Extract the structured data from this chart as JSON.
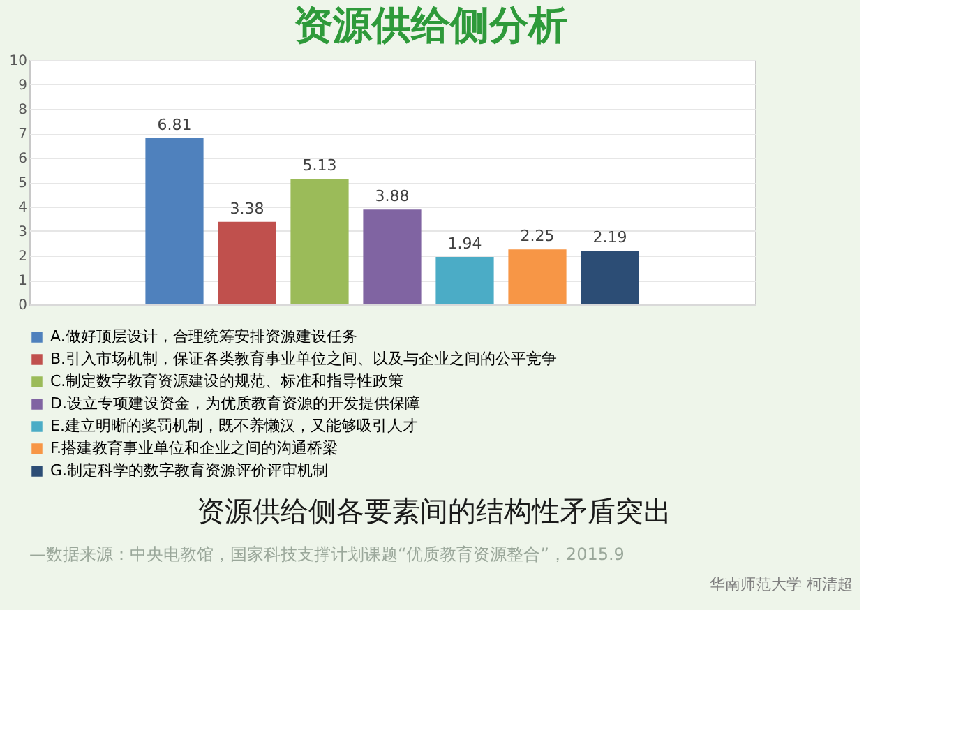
{
  "chart_data": {
    "type": "bar",
    "title": "资源供给侧分析",
    "subtitle": "资源供给侧各要素间的结构性矛盾突出",
    "categories": [
      null
    ],
    "series": [
      {
        "name": "A.做好顶层设计，合理统筹安排资源建设任务",
        "color": "#4f81bd",
        "values": [
          6.81
        ]
      },
      {
        "name": "B.引入市场机制，保证各类教育事业单位之间、以及与企业之间的公平竞争",
        "color": "#c0504d",
        "values": [
          3.38
        ]
      },
      {
        "name": "C.制定数字教育资源建设的规范、标准和指导性政策",
        "color": "#9bbb59",
        "values": [
          5.13
        ]
      },
      {
        "name": "D.设立专项建设资金，为优质教育资源的开发提供保障",
        "color": "#8064a2",
        "values": [
          3.88
        ]
      },
      {
        "name": "E.建立明晰的奖罚机制，既不养懒汉，又能够吸引人才",
        "color": "#4bacc6",
        "values": [
          1.94
        ]
      },
      {
        "name": "F.搭建教育事业单位和企业之间的沟通桥梁",
        "color": "#f79646",
        "values": [
          2.25
        ]
      },
      {
        "name": "G.制定科学的数字教育资源评价评审机制",
        "color": "#2c4d75",
        "values": [
          2.19
        ]
      }
    ],
    "ylim": [
      0,
      10
    ],
    "yticks": [
      0,
      1,
      2,
      3,
      4,
      5,
      6,
      7,
      8,
      9,
      10
    ],
    "grid": "y",
    "legend": "bottom",
    "tick_labels": "y",
    "data_labels": true,
    "annotations": [
      "—数据来源：中央电教馆，国家科技支撑计划课题“优质教育资源整合”，2015.9",
      "华南师范大学  柯清超"
    ]
  }
}
